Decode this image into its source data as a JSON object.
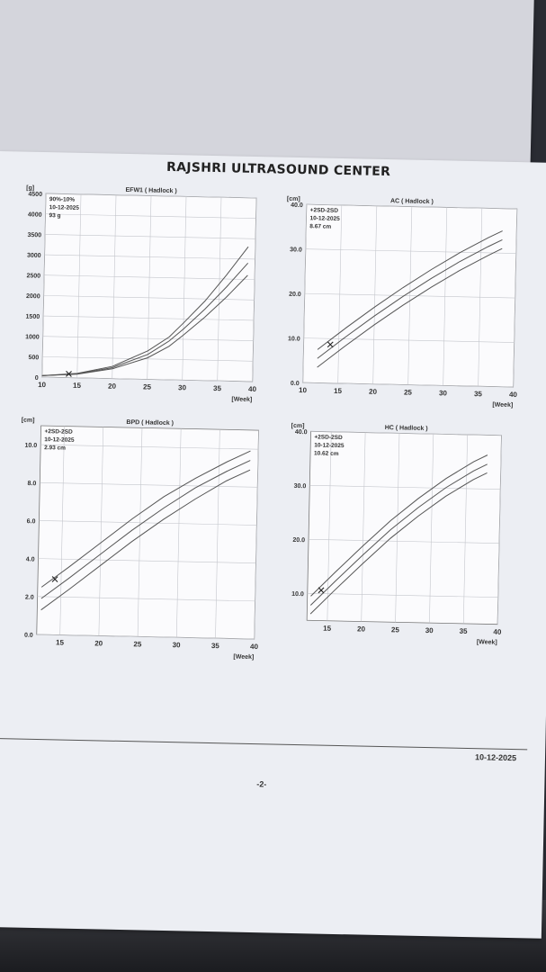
{
  "report": {
    "title": "RAJSHRI ULTRASOUND CENTER",
    "footer_date": "10-12-2025",
    "page_number": "-2-"
  },
  "chart_data": [
    {
      "id": "efw",
      "type": "line",
      "title": "EFW1 ( Hadlock )",
      "ylabel": "[g]",
      "xlabel": "[Week]",
      "xlim": [
        10,
        40
      ],
      "ylim": [
        0,
        4500
      ],
      "xticks": [
        10,
        15,
        20,
        25,
        30,
        35,
        40
      ],
      "yticks": [
        0,
        500,
        1000,
        1500,
        2000,
        2500,
        3000,
        3500,
        4000,
        4500
      ],
      "legend": [
        "90%-10%",
        "10-12-2025",
        "93 g"
      ],
      "series": [
        {
          "x": [
            10,
            15,
            20,
            25,
            28,
            30,
            33,
            36,
            39
          ],
          "y": [
            35,
            110,
            300,
            700,
            1050,
            1400,
            1950,
            2600,
            3300
          ]
        },
        {
          "x": [
            10,
            15,
            20,
            25,
            28,
            30,
            33,
            36,
            39
          ],
          "y": [
            35,
            100,
            270,
            610,
            950,
            1250,
            1750,
            2300,
            2900
          ]
        },
        {
          "x": [
            10,
            15,
            20,
            25,
            28,
            30,
            33,
            36,
            39
          ],
          "y": [
            35,
            90,
            240,
            530,
            820,
            1100,
            1550,
            2050,
            2600
          ]
        }
      ],
      "point": {
        "x": 13.8,
        "y": 93
      }
    },
    {
      "id": "ac",
      "type": "line",
      "title": "AC ( Hadlock )",
      "ylabel": "[cm]",
      "xlabel": "[Week]",
      "xlim": [
        10,
        40
      ],
      "ylim": [
        0,
        40
      ],
      "xticks": [
        10,
        15,
        20,
        25,
        30,
        35,
        40
      ],
      "yticks": [
        0,
        10,
        20,
        30,
        40
      ],
      "yfmt": 1,
      "legend": [
        "+2SD-2SD",
        "10-12-2025",
        "8.67 cm"
      ],
      "series": [
        {
          "x": [
            12,
            16,
            20,
            24,
            28,
            32,
            36,
            38
          ],
          "y": [
            7.5,
            12.5,
            17.3,
            21.8,
            26,
            29.9,
            33.4,
            35
          ]
        },
        {
          "x": [
            12,
            16,
            20,
            24,
            28,
            32,
            36,
            38
          ],
          "y": [
            5.5,
            10.5,
            15.3,
            19.8,
            24,
            27.9,
            31.4,
            33
          ]
        },
        {
          "x": [
            12,
            16,
            20,
            24,
            28,
            32,
            36,
            38
          ],
          "y": [
            3.5,
            8.5,
            13.3,
            17.8,
            22,
            25.9,
            29.4,
            31
          ]
        }
      ],
      "point": {
        "x": 13.8,
        "y": 8.67
      }
    },
    {
      "id": "bpd",
      "type": "line",
      "title": "BPD ( Hadlock )",
      "ylabel": "[cm]",
      "xlabel": "[Week]",
      "xlim": [
        12,
        40
      ],
      "ylim": [
        0,
        11
      ],
      "xticks": [
        15,
        20,
        25,
        30,
        35,
        40
      ],
      "yticks": [
        0,
        2,
        4,
        6,
        8,
        10
      ],
      "yfmt": 1,
      "legend": [
        "+2SD-2SD",
        "10-12-2025",
        "2.93 cm"
      ],
      "series": [
        {
          "x": [
            12.5,
            16,
            20,
            24,
            28,
            32,
            36,
            39
          ],
          "y": [
            2.5,
            3.6,
            4.9,
            6.2,
            7.4,
            8.4,
            9.3,
            9.9
          ]
        },
        {
          "x": [
            12.5,
            16,
            20,
            24,
            28,
            32,
            36,
            39
          ],
          "y": [
            1.9,
            3.0,
            4.3,
            5.6,
            6.8,
            7.9,
            8.8,
            9.4
          ]
        },
        {
          "x": [
            12.5,
            16,
            20,
            24,
            28,
            32,
            36,
            39
          ],
          "y": [
            1.3,
            2.4,
            3.7,
            5.0,
            6.2,
            7.3,
            8.3,
            8.9
          ]
        }
      ],
      "point": {
        "x": 14.2,
        "y": 2.93
      }
    },
    {
      "id": "hc",
      "type": "line",
      "title": "HC ( Hadlock )",
      "ylabel": "[cm]",
      "xlabel": "[Week]",
      "xlim": [
        12,
        40
      ],
      "ylim": [
        5,
        40
      ],
      "xticks": [
        15,
        20,
        25,
        30,
        35,
        40
      ],
      "yticks": [
        10,
        20,
        30,
        40
      ],
      "yfmt": 1,
      "legend": [
        "+2SD-2SD",
        "10-12-2025",
        "10.62 cm"
      ],
      "series": [
        {
          "x": [
            12.5,
            16,
            20,
            24,
            28,
            32,
            36,
            38
          ],
          "y": [
            9.5,
            14,
            19,
            23.8,
            28,
            31.8,
            35,
            36.3
          ]
        },
        {
          "x": [
            12.5,
            16,
            20,
            24,
            28,
            32,
            36,
            38
          ],
          "y": [
            7.8,
            12.3,
            17.3,
            22.1,
            26.3,
            30.1,
            33.3,
            34.6
          ]
        },
        {
          "x": [
            12.5,
            16,
            20,
            24,
            28,
            32,
            36,
            38
          ],
          "y": [
            6.2,
            10.7,
            15.7,
            20.5,
            24.7,
            28.5,
            31.7,
            33.0
          ]
        }
      ],
      "point": {
        "x": 14.0,
        "y": 10.62
      }
    }
  ]
}
